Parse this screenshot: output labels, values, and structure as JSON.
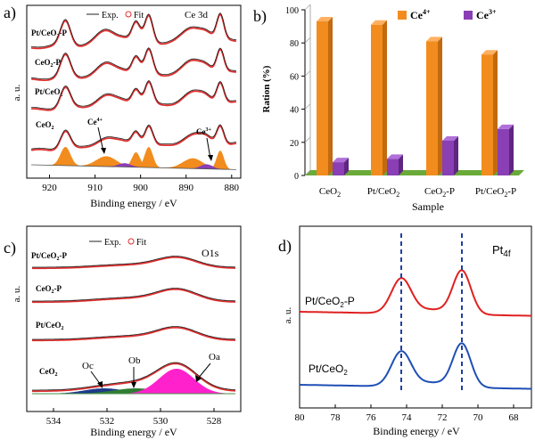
{
  "colors": {
    "exp": "#1a1a1a",
    "fit": "#e03030",
    "ce4": "#f28c1e",
    "ce3": "#8a3fb5",
    "floor": "#6aaa3a",
    "pink": "#ff22cc",
    "oc": "#1e3a8a",
    "ob": "#2e7d32",
    "red_line": "#e02020",
    "blue_line": "#1f4fb5"
  },
  "chart_data": [
    {
      "panel": "a)",
      "type": "line",
      "title": "Ce 3d",
      "legend": [
        "Exp.",
        "Fit"
      ],
      "xlabel": "Binding energy / eV",
      "ylabel": "a. u.",
      "xlim": [
        925,
        878
      ],
      "xticks": [
        "920",
        "910",
        "900",
        "890",
        "880"
      ],
      "series_labels": [
        "Pt/CeO2-P",
        "CeO2-P",
        "Pt/CeO2",
        "CeO2"
      ],
      "annotations": [
        "Ce4+",
        "Ce3+"
      ]
    },
    {
      "panel": "b)",
      "type": "bar",
      "xlabel": "Sample",
      "ylabel": "Ration (%)",
      "ylim": [
        0,
        100
      ],
      "yticks": [
        "0",
        "20",
        "40",
        "60",
        "80",
        "100"
      ],
      "categories": [
        "CeO2",
        "Pt/CeO2",
        "CeO2-P",
        "Pt/CeO2-P"
      ],
      "series": [
        {
          "name": "Ce4+",
          "values": [
            93,
            91,
            81,
            73
          ]
        },
        {
          "name": "Ce3+",
          "values": [
            8,
            10,
            21,
            28
          ]
        }
      ]
    },
    {
      "panel": "c)",
      "type": "line",
      "title": "O1s",
      "legend": [
        "Exp.",
        "Fit"
      ],
      "xlabel": "Binding energy / eV",
      "ylabel": "a. u.",
      "xlim": [
        535,
        527
      ],
      "xticks": [
        "534",
        "532",
        "530",
        "528"
      ],
      "series_labels": [
        "Pt/CeO2-P",
        "CeO2-P",
        "Pt/CeO2",
        "CeO2"
      ],
      "annotations": [
        "Oc",
        "Ob",
        "Oa"
      ]
    },
    {
      "panel": "d)",
      "type": "line",
      "title": "Pt4f",
      "xlabel": "Binding energy / eV",
      "ylabel": "a. u.",
      "xlim": [
        80,
        67
      ],
      "xticks": [
        "80",
        "78",
        "76",
        "74",
        "72",
        "70",
        "68"
      ],
      "series_labels": [
        "Pt/CeO2-P",
        "Pt/CeO2"
      ],
      "peaks": [
        74.3,
        70.9
      ]
    }
  ]
}
